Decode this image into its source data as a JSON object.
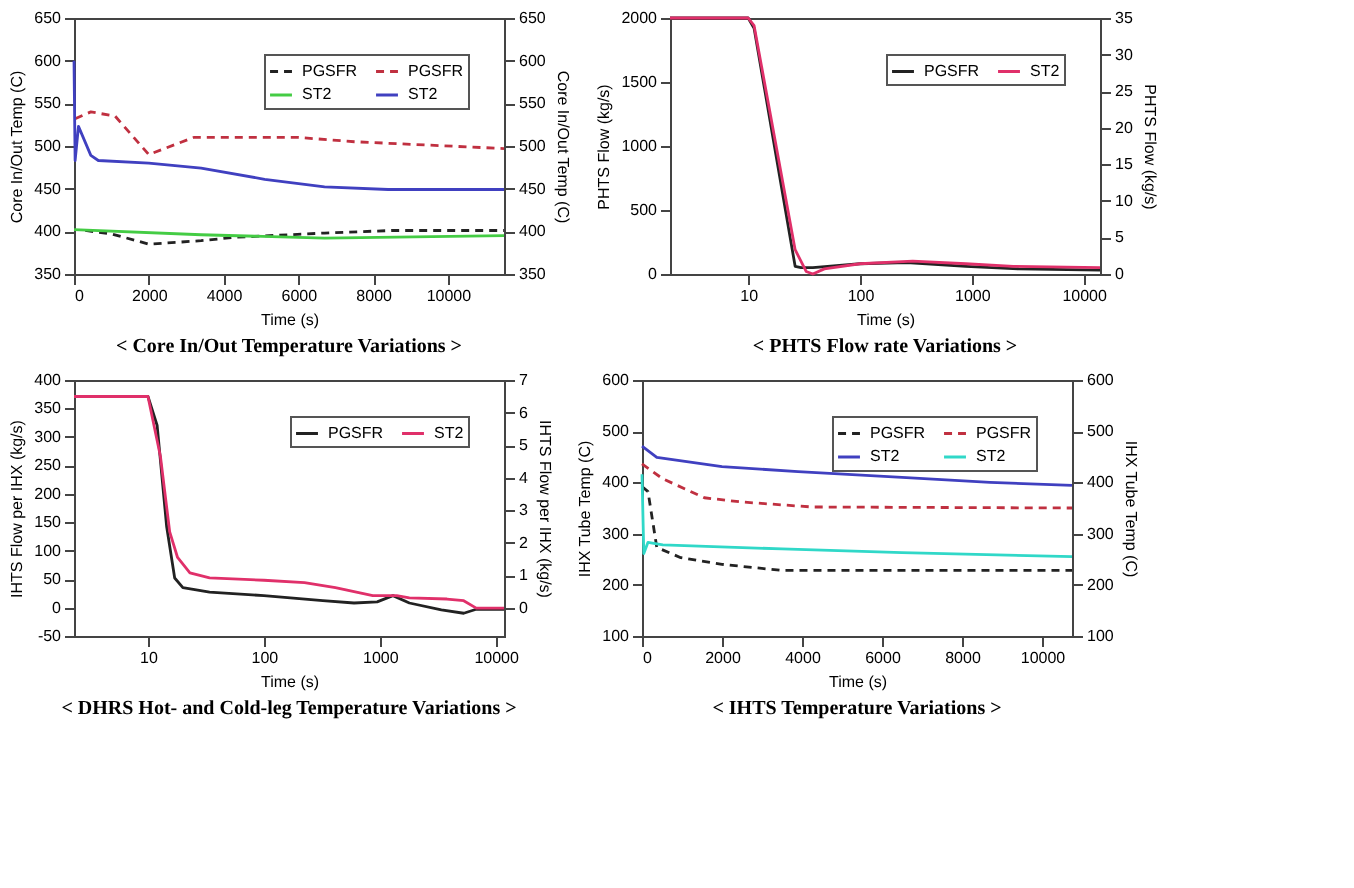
{
  "chart_data": [
    {
      "type": "line",
      "title": "< Core In/Out Temperature Variations >",
      "xlabel": "Time (s)",
      "ylabel": "Core In/Out Temp (C)",
      "y2label": "Core In/Out Temp (C)",
      "xlim": [
        0,
        11500
      ],
      "xticks": [
        0,
        2000,
        4000,
        6000,
        8000,
        10000
      ],
      "ylim": [
        350,
        650
      ],
      "yticks": [
        350,
        400,
        450,
        500,
        550,
        600,
        650
      ],
      "y2lim": [
        350,
        650
      ],
      "y2ticks": [
        350,
        400,
        450,
        500,
        550,
        600,
        650
      ],
      "legend": "top right",
      "grid": false,
      "series": [
        {
          "name": "PGSFR",
          "color": "#222222",
          "line_style": "dashed",
          "x": [
            300,
            1000,
            2000,
            3400,
            4300,
            6700,
            8500,
            11500
          ],
          "values": [
            401,
            397,
            385,
            389,
            393,
            398,
            401,
            401
          ]
        },
        {
          "name": "ST2",
          "color": "#44cc44",
          "line_style": "solid",
          "x": [
            0,
            3400,
            6700,
            11500
          ],
          "values": [
            402,
            396,
            392,
            395
          ]
        },
        {
          "name": "PGSFR",
          "color": "#c03040",
          "line_style": "dashed",
          "x": [
            30,
            450,
            1100,
            2000,
            3200,
            6000,
            7500,
            11500
          ],
          "values": [
            532,
            540,
            535,
            490,
            510,
            510,
            505,
            497
          ]
        },
        {
          "name": "ST2",
          "color": "#4040c0",
          "line_style": "solid",
          "x": [
            0,
            30,
            120,
            450,
            650,
            2000,
            3400,
            5100,
            6700,
            8400,
            11500
          ],
          "values": [
            600,
            483,
            523,
            489,
            483,
            480,
            474,
            461,
            452,
            449,
            449
          ]
        }
      ]
    },
    {
      "type": "line",
      "title": "< PHTS Flow rate Variations >",
      "xlabel": "Time (s)",
      "ylabel": "PHTS Flow (kg/s)",
      "y2label": "PHTS Flow (kg/s)",
      "log": "x",
      "xlim": [
        2,
        14000
      ],
      "xticks": [
        10,
        100,
        1000,
        10000
      ],
      "ylim": [
        0,
        2000
      ],
      "yticks": [
        0,
        500,
        1000,
        1500,
        2000
      ],
      "y2lim": [
        0,
        35
      ],
      "y2ticks": [
        0,
        5,
        10,
        15,
        20,
        25,
        30,
        35
      ],
      "legend": "top right",
      "grid": false,
      "series": [
        {
          "name": "PGSFR",
          "color": "#222222",
          "line_style": "solid",
          "x": [
            2,
            10,
            11.3,
            26.3,
            29.7,
            37.9,
            100,
            262,
            885,
            2640,
            14000
          ],
          "values": [
            2000,
            2000,
            1920,
            60,
            50,
            50,
            80,
            90,
            60,
            40,
            30
          ]
        },
        {
          "name": "ST2",
          "color": "#e0306a",
          "line_style": "solid",
          "x": [
            2,
            10,
            11.3,
            26.3,
            33,
            37.9,
            48,
            100,
            296,
            885,
            2350,
            14000
          ],
          "values": [
            2000,
            2000,
            1940,
            190,
            20,
            0,
            40,
            80,
            100,
            80,
            60,
            50
          ]
        }
      ]
    },
    {
      "type": "line",
      "title": "< DHRS Hot- and Cold-leg Temperature Variations >",
      "xlabel": "Time (s)",
      "ylabel": "IHTS Flow per IHX (kg/s)",
      "y2label": "IHTS Flow per IHX (kg/s)",
      "log": "x",
      "xlim": [
        2.3,
        11800
      ],
      "xticks": [
        10,
        100,
        1000,
        10000
      ],
      "ylim": [
        -50,
        400
      ],
      "yticks": [
        -50,
        0,
        50,
        100,
        150,
        200,
        250,
        300,
        350,
        400
      ],
      "y2lim": [
        -0.875,
        7
      ],
      "y2ticks": [
        0,
        1,
        2,
        3,
        4,
        5,
        6,
        7
      ],
      "legend": "top right",
      "grid": false,
      "series": [
        {
          "name": "PGSFR",
          "color": "#222222",
          "line_style": "solid",
          "x": [
            2.3,
            10,
            12,
            14.5,
            17,
            20,
            34,
            100,
            322,
            600,
            950,
            1300,
            1800,
            3400,
            5300,
            6800,
            11800
          ],
          "values": [
            371,
            371,
            320,
            142,
            52,
            35,
            27,
            21,
            12,
            8,
            10,
            21,
            8,
            -4,
            -10,
            -3,
            -3
          ]
        },
        {
          "name": "ST2",
          "color": "#e0306a",
          "line_style": "solid",
          "x": [
            2.3,
            10,
            12.8,
            15.4,
            18,
            23,
            34,
            100,
            224,
            414,
            870,
            1400,
            1800,
            3800,
            5300,
            6800,
            11800
          ],
          "values": [
            371,
            371,
            266,
            133,
            88,
            61,
            52,
            48,
            44,
            35,
            21,
            21,
            17,
            15,
            12,
            -1,
            -1
          ]
        }
      ]
    },
    {
      "type": "line",
      "title": "< IHTS Temperature Variations >",
      "xlabel": "Time (s)",
      "ylabel": "IHX Tube Temp (C)",
      "y2label": "IHX Tube Temp (C)",
      "xlim": [
        0,
        10750
      ],
      "xticks": [
        0,
        2000,
        4000,
        6000,
        8000,
        10000
      ],
      "ylim": [
        100,
        600
      ],
      "yticks": [
        100,
        200,
        300,
        400,
        500,
        600
      ],
      "y2lim": [
        100,
        600
      ],
      "y2ticks": [
        100,
        200,
        300,
        400,
        500,
        600
      ],
      "legend": "top right",
      "grid": false,
      "series": [
        {
          "name": "PGSFR",
          "color": "#222222",
          "line_style": "dashed",
          "x": [
            0,
            150,
            370,
            970,
            2000,
            3500,
            10750
          ],
          "values": [
            392,
            382,
            273,
            253,
            240,
            228,
            228
          ]
        },
        {
          "name": "ST2",
          "color": "#4040c0",
          "line_style": "solid",
          "x": [
            0,
            370,
            2000,
            3900,
            6500,
            8700,
            10750
          ],
          "values": [
            471,
            449,
            431,
            421,
            410,
            400,
            394
          ]
        },
        {
          "name": "PGSFR",
          "color": "#c03040",
          "line_style": "dashed",
          "x": [
            0,
            520,
            1560,
            2450,
            4240,
            10750
          ],
          "values": [
            436,
            407,
            370,
            362,
            352,
            350
          ]
        },
        {
          "name": "ST2",
          "color": "#30d8c8",
          "line_style": "solid",
          "x": [
            0,
            45,
            150,
            520,
            3500,
            6500,
            10750
          ],
          "values": [
            416,
            261,
            283,
            278,
            270,
            263,
            255
          ]
        }
      ]
    }
  ]
}
